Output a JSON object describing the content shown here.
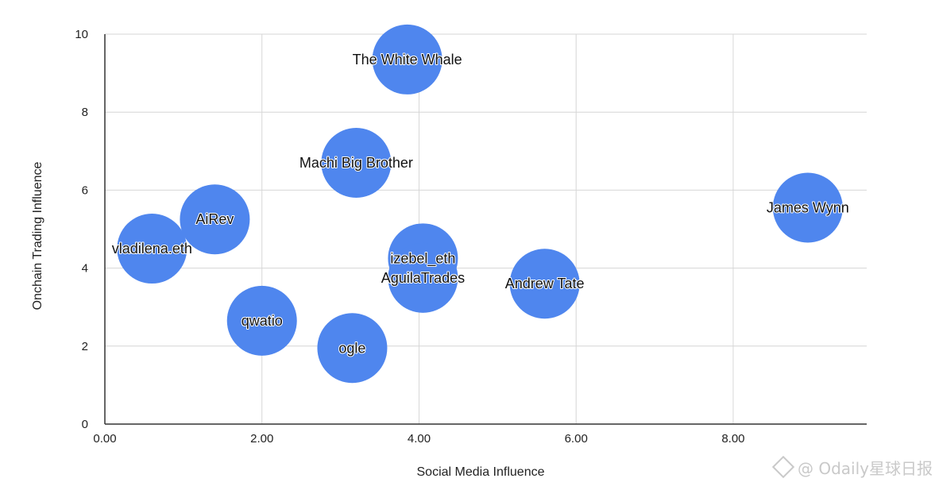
{
  "chart_data": {
    "type": "scatter",
    "title": "",
    "xlabel": "Social Media Influence",
    "ylabel": "Onchain Trading Influence",
    "xlim": [
      0,
      9.7
    ],
    "ylim": [
      0,
      10
    ],
    "x_ticks": [
      "0.00",
      "2.00",
      "4.00",
      "6.00",
      "8.00"
    ],
    "x_tick_values": [
      0,
      2,
      4,
      6,
      8
    ],
    "y_ticks": [
      "0",
      "2",
      "4",
      "6",
      "8",
      "10"
    ],
    "y_tick_values": [
      0,
      2,
      4,
      6,
      8,
      10
    ],
    "grid": true,
    "bubble_color": "#4f86ee",
    "points": [
      {
        "label": "The White Whale",
        "x": 3.85,
        "y": 9.35
      },
      {
        "label": "Machi Big Brother",
        "x": 3.2,
        "y": 6.7
      },
      {
        "label": "James Wynn",
        "x": 8.95,
        "y": 5.55
      },
      {
        "label": "AiRev",
        "x": 1.4,
        "y": 5.25
      },
      {
        "label": "vladilena.eth",
        "x": 0.6,
        "y": 4.5
      },
      {
        "label": "izebel_eth",
        "x": 4.05,
        "y": 4.25
      },
      {
        "label": "AguilaTrades",
        "x": 4.05,
        "y": 3.75
      },
      {
        "label": "Andrew Tate",
        "x": 5.6,
        "y": 3.6
      },
      {
        "label": "qwatio",
        "x": 2.0,
        "y": 2.65
      },
      {
        "label": "ogle",
        "x": 3.15,
        "y": 1.95
      }
    ]
  },
  "watermark": {
    "text": "@ Odaily星球日报"
  }
}
